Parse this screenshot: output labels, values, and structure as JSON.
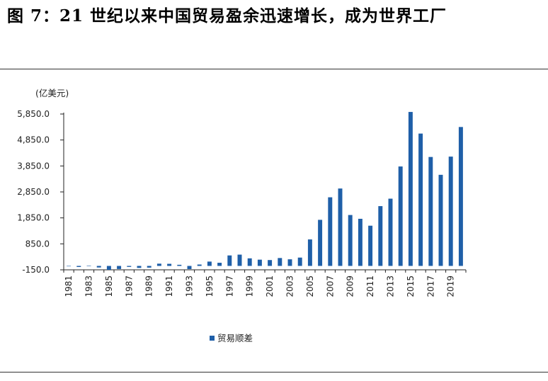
{
  "figure": {
    "title": "图 7：21 世纪以来中国贸易盈余迅速增长，成为世界工厂"
  },
  "chart_data": {
    "type": "bar",
    "unit": "(亿美元)",
    "ylim": [
      -150,
      5850
    ],
    "yticks": [
      -150,
      850,
      1850,
      2850,
      3850,
      4850,
      5850
    ],
    "ytick_labels": [
      "-150.0",
      "850.0",
      "1,850.0",
      "2,850.0",
      "3,850.0",
      "4,850.0",
      "5,850.0"
    ],
    "categories": [
      "1981",
      "1982",
      "1983",
      "1984",
      "1985",
      "1986",
      "1987",
      "1988",
      "1989",
      "1990",
      "1991",
      "1992",
      "1993",
      "1994",
      "1995",
      "1996",
      "1997",
      "1998",
      "1999",
      "2000",
      "2001",
      "2002",
      "2003",
      "2004",
      "2005",
      "2006",
      "2007",
      "2008",
      "2009",
      "2010",
      "2011",
      "2012",
      "2013",
      "2014",
      "2015",
      "2016",
      "2017",
      "2018",
      "2019",
      "2020"
    ],
    "xtick_labels": [
      "1981",
      "1983",
      "1985",
      "1987",
      "1989",
      "1991",
      "1993",
      "1995",
      "1997",
      "1999",
      "2001",
      "2003",
      "2005",
      "2007",
      "2009",
      "2011",
      "2013",
      "2015",
      "2017",
      "2019"
    ],
    "series": [
      {
        "name": "贸易顺差",
        "color": "#1f5fa8",
        "values": [
          -2,
          -40,
          8,
          -60,
          -150,
          -120,
          -38,
          -77,
          -66,
          87,
          81,
          44,
          -122,
          54,
          167,
          122,
          404,
          435,
          292,
          241,
          226,
          304,
          255,
          321,
          1020,
          1775,
          2643,
          2981,
          1961,
          1815,
          1549,
          2303,
          2590,
          3830,
          5930,
          5097,
          4196,
          3509,
          4210,
          5350
        ]
      }
    ],
    "legend_position": "bottom-center",
    "grid": false
  }
}
